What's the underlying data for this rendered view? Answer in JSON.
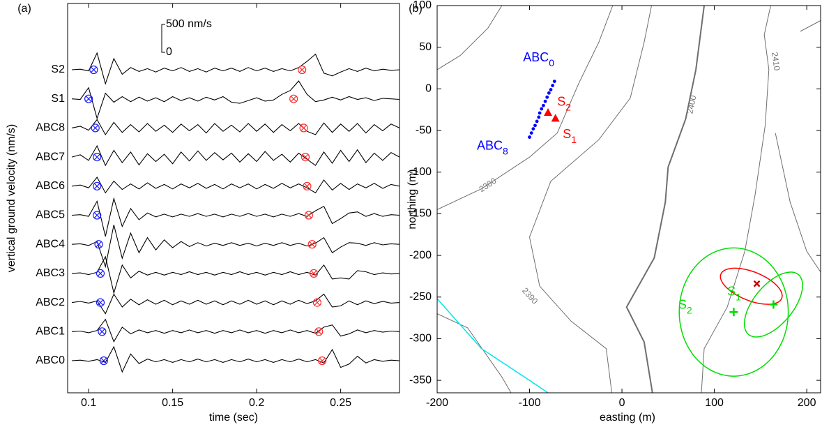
{
  "chart_data": [
    {
      "type": "wiggle",
      "panel_label": "(a)",
      "xlabel": "time (sec)",
      "ylabel": "vertical ground velocity (nm/s)",
      "xlim": [
        0.0875,
        0.285
      ],
      "xticks": [
        0.1,
        0.15,
        0.2,
        0.25
      ],
      "scale_bar": {
        "value": 500,
        "label": "500 nm/s",
        "zero": 0
      },
      "color": "#000000",
      "pick_colors": {
        "p": "#1a1aff",
        "s": "#ff2a2a"
      },
      "x": [
        0.09,
        0.095,
        0.1,
        0.105,
        0.11,
        0.115,
        0.12,
        0.125,
        0.13,
        0.135,
        0.14,
        0.145,
        0.15,
        0.155,
        0.16,
        0.165,
        0.17,
        0.175,
        0.18,
        0.185,
        0.19,
        0.195,
        0.2,
        0.205,
        0.21,
        0.215,
        0.22,
        0.225,
        0.23,
        0.235,
        0.24,
        0.245,
        0.25,
        0.255,
        0.26,
        0.265,
        0.27,
        0.275,
        0.28,
        0.285
      ],
      "series": [
        {
          "name": "S2",
          "p_pick": 0.103,
          "s_pick": 0.227,
          "values": [
            0,
            10,
            -20,
            300,
            -250,
            200,
            -80,
            40,
            -30,
            20,
            -40,
            30,
            -20,
            40,
            -30,
            20,
            -40,
            30,
            -20,
            30,
            -30,
            40,
            -20,
            30,
            -30,
            20,
            -20,
            40,
            150,
            280,
            -60,
            -110,
            -40,
            20,
            -30,
            30,
            -20,
            10,
            -10,
            0
          ]
        },
        {
          "name": "S1",
          "p_pick": 0.1,
          "s_pick": 0.222,
          "values": [
            0,
            -10,
            200,
            -350,
            100,
            -60,
            40,
            -50,
            30,
            -40,
            20,
            -50,
            40,
            -30,
            20,
            -40,
            30,
            -20,
            40,
            -60,
            -80,
            -30,
            20,
            -40,
            -20,
            80,
            150,
            320,
            80,
            -50,
            -20,
            30,
            -20,
            40,
            -10,
            20,
            -30,
            10,
            0,
            -10
          ]
        },
        {
          "name": "ABC8",
          "p_pick": 0.104,
          "s_pick": 0.228,
          "values": [
            0,
            30,
            -40,
            150,
            -120,
            100,
            -80,
            60,
            -70,
            80,
            -60,
            50,
            -80,
            70,
            -50,
            60,
            -90,
            80,
            -60,
            50,
            -70,
            80,
            -60,
            70,
            -80,
            60,
            -50,
            80,
            -60,
            -120,
            90,
            -80,
            70,
            -60,
            80,
            -90,
            60,
            -50,
            70,
            0
          ]
        },
        {
          "name": "ABC7",
          "p_pick": 0.105,
          "s_pick": 0.229,
          "values": [
            0,
            40,
            -60,
            200,
            -150,
            120,
            -100,
            90,
            -140,
            60,
            -80,
            50,
            -120,
            90,
            -70,
            110,
            -60,
            80,
            -50,
            70,
            -90,
            60,
            -80,
            100,
            -60,
            50,
            -90,
            70,
            -40,
            -150,
            90,
            -110,
            120,
            -80,
            130,
            -100,
            70,
            -60,
            80,
            0
          ]
        },
        {
          "name": "ABC6",
          "p_pick": 0.105,
          "s_pick": 0.23,
          "values": [
            0,
            20,
            -30,
            160,
            -120,
            90,
            -60,
            40,
            -50,
            60,
            -40,
            30,
            -50,
            40,
            -30,
            50,
            -40,
            30,
            -50,
            40,
            -30,
            40,
            -50,
            30,
            -40,
            50,
            -30,
            40,
            -30,
            -120,
            110,
            -70,
            50,
            -60,
            40,
            -30,
            50,
            -40,
            30,
            0
          ]
        },
        {
          "name": "ABC5",
          "p_pick": 0.105,
          "s_pick": 0.231,
          "values": [
            0,
            10,
            -20,
            250,
            -380,
            300,
            -200,
            120,
            -80,
            40,
            -30,
            20,
            -30,
            20,
            -20,
            30,
            -20,
            20,
            -30,
            20,
            -20,
            30,
            -20,
            20,
            -30,
            20,
            -20,
            30,
            -20,
            80,
            160,
            -150,
            -60,
            40,
            60,
            -20,
            30,
            -20,
            10,
            0
          ]
        },
        {
          "name": "ABC4",
          "p_pick": 0.106,
          "s_pick": 0.233,
          "values": [
            0,
            10,
            -20,
            50,
            -400,
            350,
            -250,
            200,
            -150,
            120,
            -100,
            80,
            -60,
            50,
            -40,
            30,
            -30,
            20,
            -20,
            30,
            -20,
            20,
            -30,
            20,
            -20,
            30,
            -20,
            20,
            -30,
            20,
            120,
            -150,
            -50,
            30,
            20,
            -20,
            30,
            -10,
            10,
            0
          ]
        },
        {
          "name": "ABC3",
          "p_pick": 0.107,
          "s_pick": 0.234,
          "values": [
            0,
            10,
            -20,
            20,
            300,
            -350,
            150,
            -80,
            40,
            -30,
            20,
            -30,
            20,
            -20,
            30,
            -20,
            20,
            -30,
            20,
            -20,
            30,
            -20,
            20,
            -30,
            20,
            -20,
            30,
            -20,
            20,
            -30,
            150,
            -100,
            -80,
            -100,
            50,
            30,
            -20,
            10,
            -10,
            0
          ]
        },
        {
          "name": "ABC2",
          "p_pick": 0.107,
          "s_pick": 0.236,
          "values": [
            0,
            20,
            -10,
            30,
            -200,
            150,
            -80,
            60,
            -40,
            50,
            -30,
            40,
            -40,
            30,
            -30,
            40,
            -30,
            30,
            -40,
            30,
            -30,
            40,
            -30,
            30,
            -40,
            30,
            -30,
            40,
            -20,
            30,
            150,
            -80,
            -60,
            30,
            -40,
            30,
            -20,
            20,
            -10,
            0
          ]
        },
        {
          "name": "ABC1",
          "p_pick": 0.108,
          "s_pick": 0.237,
          "values": [
            0,
            10,
            -20,
            20,
            220,
            -180,
            80,
            -40,
            30,
            -20,
            20,
            -30,
            20,
            -20,
            30,
            -20,
            20,
            -30,
            20,
            -20,
            30,
            -20,
            20,
            -30,
            20,
            -20,
            30,
            -20,
            20,
            -30,
            80,
            120,
            -80,
            -40,
            30,
            -20,
            20,
            -10,
            10,
            0
          ]
        },
        {
          "name": "ABC0",
          "p_pick": 0.109,
          "s_pick": 0.239,
          "values": [
            0,
            10,
            -10,
            20,
            -30,
            250,
            -200,
            120,
            -50,
            30,
            -20,
            20,
            -30,
            20,
            -20,
            30,
            -20,
            20,
            -30,
            20,
            -20,
            30,
            -20,
            20,
            -30,
            20,
            -20,
            30,
            -20,
            20,
            -40,
            200,
            -120,
            -60,
            80,
            -40,
            20,
            -10,
            10,
            0
          ]
        }
      ]
    },
    {
      "type": "map",
      "panel_label": "(b)",
      "xlabel": "easting (m)",
      "ylabel": "northing (m)",
      "xlim": [
        -200,
        215
      ],
      "ylim": [
        -365,
        100
      ],
      "xticks": [
        -200,
        -100,
        0,
        100,
        200
      ],
      "yticks": [
        100,
        50,
        0,
        -50,
        -100,
        -150,
        -200,
        -250,
        -300,
        -350
      ],
      "lines": [
        {
          "color": "#6e6e6e",
          "width": 1,
          "x": [
            -200,
            -175,
            -145,
            -130
          ],
          "y": [
            23,
            40,
            73,
            100
          ]
        },
        {
          "level": 2380,
          "color": "#6e6e6e",
          "width": 1,
          "label_x": -145,
          "label_y": -116,
          "x": [
            -200,
            -152,
            -100,
            -70,
            -47,
            -25,
            -10
          ],
          "y": [
            -145,
            -120,
            -82,
            -53,
            6,
            56,
            100
          ]
        },
        {
          "level": 2390,
          "color": "#6e6e6e",
          "width": 1,
          "label_x": -100,
          "label_y": -249,
          "x": [
            -11,
            -17,
            -55,
            -89,
            -100,
            -77,
            -25,
            9,
            24,
            32
          ],
          "y": [
            -365,
            -312,
            -279,
            -237,
            -178,
            -111,
            -61,
            -11,
            56,
            100
          ]
        },
        {
          "color": "#6e6e6e",
          "width": 1,
          "x": [
            -200,
            -167,
            -130,
            -120
          ],
          "y": [
            -270,
            -287,
            -346,
            -365
          ]
        },
        {
          "level": 2400,
          "color": "#6e6e6e",
          "width": 2,
          "label_x": 76,
          "label_y": -19,
          "x": [
            33,
            24,
            5,
            35,
            47,
            50,
            69,
            80,
            89
          ],
          "y": [
            -365,
            -304,
            -262,
            -203,
            -136,
            -94,
            -36,
            23,
            100
          ]
        },
        {
          "level": 2410,
          "color": "#6e6e6e",
          "width": 1,
          "label_x": 166,
          "label_y": 33,
          "x": [
            86,
            89,
            114,
            133,
            144,
            155,
            159,
            154,
            161
          ],
          "y": [
            -365,
            -312,
            -262,
            -195,
            -128,
            -44,
            23,
            65,
            100
          ]
        },
        {
          "color": "#6e6e6e",
          "width": 1,
          "x": [
            166,
            182,
            200,
            215
          ],
          "y": [
            -53,
            -136,
            -195,
            -220
          ]
        },
        {
          "color": "#6e6e6e",
          "width": 1,
          "x": [
            193,
            215
          ],
          "y": [
            69,
            82
          ]
        },
        {
          "color": "#00e5ee",
          "width": 1.5,
          "x": [
            -200,
            -152,
            -100,
            -80
          ],
          "y": [
            -252,
            -312,
            -350,
            -365
          ]
        }
      ],
      "markers": [
        {
          "symbol": "dot",
          "color": "#0000ff",
          "x": [
            -73,
            -75,
            -77,
            -79,
            -81,
            -83,
            -85,
            -87,
            -89,
            -90,
            -92,
            -94,
            -96,
            -98,
            -100
          ],
          "y": [
            9,
            4,
            -1,
            -5,
            -10,
            -15,
            -20,
            -24,
            -29,
            -34,
            -39,
            -44,
            -48,
            -53,
            -58
          ]
        },
        {
          "symbol": "triangle",
          "color": "#ff0000",
          "x": [
            -80,
            -72
          ],
          "y": [
            -29,
            -36
          ]
        },
        {
          "symbol": "x",
          "color": "#cc0000",
          "x": [
            146
          ],
          "y": [
            -234
          ]
        },
        {
          "symbol": "plus",
          "color": "#00dd00",
          "x": [
            121,
            164
          ],
          "y": [
            -268,
            -259
          ]
        }
      ],
      "ellipses": [
        {
          "color": "#ff0000",
          "cx": 140,
          "cy": -237,
          "a": 36,
          "b": 17,
          "angle": -25
        },
        {
          "color": "#00dd00",
          "cx": 121,
          "cy": -268,
          "a": 59,
          "b": 77,
          "angle": 0
        },
        {
          "color": "#00dd00",
          "cx": 164,
          "cy": -259,
          "a": 45,
          "b": 22,
          "angle": 55
        }
      ],
      "annotations": [
        {
          "text": "ABC",
          "sub": "0",
          "color": "#0000ff",
          "x": -107,
          "y": 37
        },
        {
          "text": "ABC",
          "sub": "8",
          "color": "#0000ff",
          "x": -157,
          "y": -69
        },
        {
          "text": "S",
          "sub": "2",
          "color": "#ff0000",
          "x": -70,
          "y": -16
        },
        {
          "text": "S",
          "sub": "1",
          "color": "#ff0000",
          "x": -64,
          "y": -55
        },
        {
          "text": "S",
          "sub": "2",
          "color": "#00dd00",
          "x": 61,
          "y": -260
        },
        {
          "text": "S",
          "sub": "1",
          "color": "#00dd00",
          "x": 114,
          "y": -244
        }
      ]
    }
  ]
}
